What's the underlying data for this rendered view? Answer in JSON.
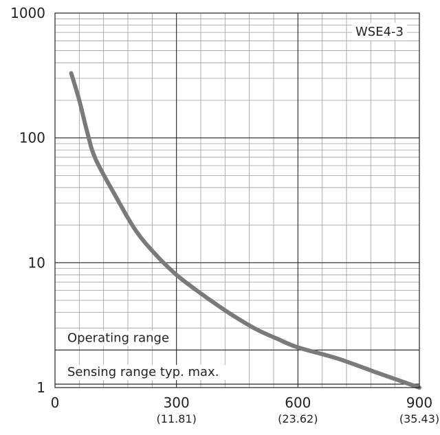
{
  "chart_data": {
    "type": "line",
    "title": "",
    "xlabel": "",
    "ylabel": "",
    "xlim": [
      0,
      900
    ],
    "ylim": [
      1,
      1000
    ],
    "y_scale": "log",
    "grid": true,
    "x_ticks": [
      {
        "value": 0,
        "label": "0",
        "sub": ""
      },
      {
        "value": 300,
        "label": "300",
        "sub": "(11.81)"
      },
      {
        "value": 600,
        "label": "600",
        "sub": "(23.62)"
      },
      {
        "value": 900,
        "label": "900",
        "sub": "(35.43)"
      }
    ],
    "y_ticks": [
      {
        "value": 1,
        "label": "1"
      },
      {
        "value": 10,
        "label": "10"
      },
      {
        "value": 100,
        "label": "100"
      },
      {
        "value": 1000,
        "label": "1000"
      }
    ],
    "series": [
      {
        "name": "WSE4-3",
        "color": "#7a7a7a",
        "x": [
          40,
          60,
          80,
          100,
          150,
          200,
          250,
          300,
          350,
          400,
          450,
          500,
          550,
          600,
          700,
          800,
          900
        ],
        "y": [
          330,
          200,
          110,
          68,
          34,
          18,
          11.5,
          8,
          6,
          4.6,
          3.6,
          2.9,
          2.45,
          2.1,
          1.7,
          1.3,
          1.0
        ]
      }
    ],
    "bands": [
      {
        "label": "Operating range",
        "y": 2
      },
      {
        "label": "Sensing range typ. max.",
        "y": 0.97
      }
    ]
  }
}
